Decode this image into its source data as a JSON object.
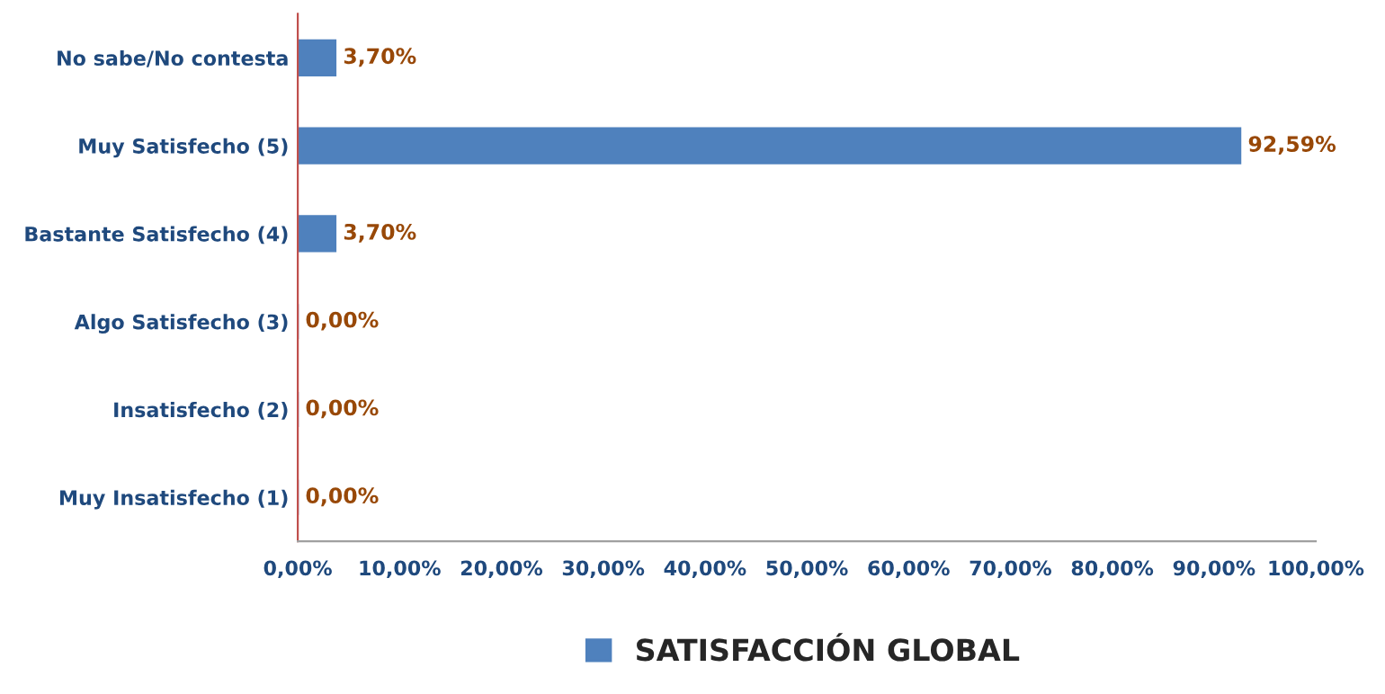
{
  "chart_data": {
    "type": "bar",
    "orientation": "horizontal",
    "categories": [
      "No sabe/No contesta",
      "Muy Satisfecho (5)",
      "Bastante Satisfecho (4)",
      "Algo Satisfecho (3)",
      "Insatisfecho (2)",
      "Muy Insatisfecho (1)"
    ],
    "series": [
      {
        "name": "SATISFACCIÓN GLOBAL",
        "color": "#4f81bd",
        "values": [
          3.7,
          92.59,
          3.7,
          0,
          0,
          0
        ],
        "value_labels": [
          "3,70%",
          "92,59%",
          "3,70%",
          "0,00%",
          "0,00%",
          "0,00%"
        ]
      }
    ],
    "xlim": [
      0,
      100
    ],
    "xticks": [
      {
        "value": 0,
        "label": "0,00%"
      },
      {
        "value": 10,
        "label": "10,00%"
      },
      {
        "value": 20,
        "label": "20,00%"
      },
      {
        "value": 30,
        "label": "30,00%"
      },
      {
        "value": 40,
        "label": "40,00%"
      },
      {
        "value": 50,
        "label": "50,00%"
      },
      {
        "value": 60,
        "label": "60,00%"
      },
      {
        "value": 70,
        "label": "70,00%"
      },
      {
        "value": 80,
        "label": "80,00%"
      },
      {
        "value": 90,
        "label": "90,00%"
      },
      {
        "value": 100,
        "label": "100,00%"
      }
    ],
    "grid": false,
    "legend": "bottom"
  }
}
